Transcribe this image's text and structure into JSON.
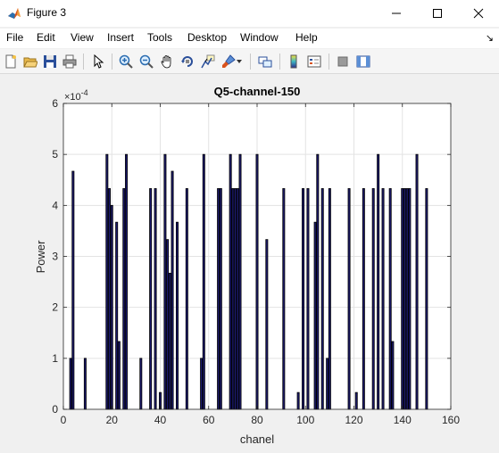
{
  "window": {
    "title": "Figure 3",
    "controls": {
      "minimize": "minimize",
      "maximize": "maximize",
      "close": "close"
    }
  },
  "menubar": {
    "items": [
      "File",
      "Edit",
      "View",
      "Insert",
      "Tools",
      "Desktop",
      "Window",
      "Help"
    ]
  },
  "toolbar": {
    "buttons": [
      "new-figure-icon",
      "open-file-icon",
      "save-icon",
      "print-icon",
      "edit-plot-icon",
      "zoom-in-icon",
      "zoom-out-icon",
      "pan-icon",
      "rotate-3d-icon",
      "data-cursor-icon",
      "brush-icon",
      "link-plot-icon",
      "colorbar-icon",
      "legend-icon",
      "hide-plot-tools-icon",
      "show-plot-tools-icon"
    ]
  },
  "colors": {
    "bar_fill": "#1c1a6e",
    "bar_edge": "#000000",
    "grid": "#e3e3e3",
    "axes_bg": "#ffffff",
    "figure_bg": "#f0f0f0"
  },
  "chart_data": {
    "type": "bar",
    "title": "Q5-channel-150",
    "xlabel": "chanel",
    "ylabel": "Power",
    "y_multiplier_label": "×10",
    "y_multiplier_exponent": "-4",
    "xlim": [
      0,
      160
    ],
    "ylim": [
      0,
      6
    ],
    "xticks": [
      0,
      20,
      40,
      60,
      80,
      100,
      120,
      140,
      160
    ],
    "yticks": [
      0,
      1,
      2,
      3,
      4,
      5,
      6
    ],
    "grid": true,
    "x": [
      3,
      4,
      9,
      18,
      19,
      20,
      22,
      23,
      25,
      26,
      32,
      36,
      38,
      40,
      42,
      43,
      44,
      45,
      47,
      51,
      57,
      58,
      64,
      65,
      69,
      70,
      71,
      72,
      73,
      80,
      84,
      91,
      97,
      99,
      101,
      104,
      105,
      107,
      109,
      110,
      118,
      121,
      124,
      128,
      130,
      132,
      135,
      136,
      140,
      141,
      142,
      143,
      146,
      150
    ],
    "values": [
      1.0,
      4.67,
      1.0,
      5.0,
      4.33,
      4.0,
      3.67,
      1.33,
      4.33,
      5.0,
      1.0,
      4.33,
      4.33,
      0.33,
      5.0,
      3.33,
      2.67,
      4.67,
      3.67,
      4.33,
      1.0,
      5.0,
      4.33,
      4.33,
      5.0,
      4.33,
      4.33,
      4.33,
      5.0,
      5.0,
      3.33,
      4.33,
      0.33,
      4.33,
      4.33,
      3.67,
      5.0,
      4.33,
      1.0,
      4.33,
      4.33,
      0.33,
      4.33,
      4.33,
      5.0,
      4.33,
      4.33,
      1.33,
      4.33,
      4.33,
      4.33,
      4.33,
      5.0,
      4.33
    ]
  }
}
